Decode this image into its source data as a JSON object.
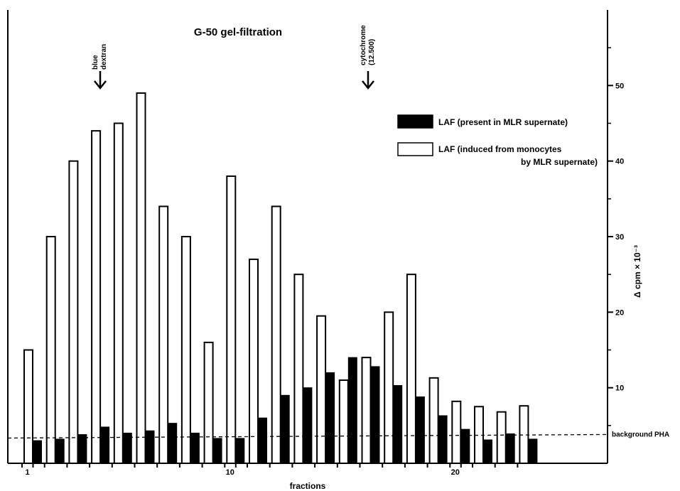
{
  "chart_data": {
    "type": "bar",
    "title": "G-50 gel-filtration",
    "xlabel": "fractions",
    "ylabel": "Δ cpm × 10⁻³",
    "x_ticks": [
      1,
      10,
      20
    ],
    "y_ticks": [
      10,
      20,
      30,
      40,
      50
    ],
    "ylim": [
      0,
      60
    ],
    "fractions": [
      1,
      2,
      3,
      4,
      5,
      6,
      7,
      8,
      9,
      10,
      11,
      12,
      13,
      14,
      15,
      16,
      17,
      18,
      19,
      20,
      21,
      22,
      23
    ],
    "series": [
      {
        "name": "LAF (induced from monocytes by MLR supernate)",
        "legend_lines": [
          "LAF (induced from monocytes",
          "by MLR supernate)"
        ],
        "fill": "#ffffff",
        "values": [
          15,
          30,
          40,
          44,
          45,
          49,
          34,
          30,
          16,
          38,
          27,
          34,
          25,
          19.5,
          11,
          14,
          20,
          25,
          11.3,
          8.2,
          7.5,
          6.8,
          7.6
        ]
      },
      {
        "name": "LAF (present in MLR supernate)",
        "legend_lines": [
          "LAF (present in MLR supernate)"
        ],
        "fill": "#000000",
        "values": [
          3,
          3.2,
          3.8,
          4.8,
          4,
          4.3,
          5.3,
          4,
          3.3,
          3.3,
          6,
          9,
          10,
          12,
          14,
          12.8,
          10.3,
          8.8,
          6.3,
          4.5,
          3.1,
          3.9,
          3.2
        ]
      }
    ],
    "background_line": {
      "label": "background PHA",
      "value": 4
    },
    "annotations": [
      {
        "label_lines": [
          "blue",
          "dextran"
        ],
        "at_fraction": 4
      },
      {
        "label_lines": [
          "cytochrome",
          "(12.500)"
        ],
        "at_fraction": 16
      }
    ],
    "grid": false,
    "legend_position": "right"
  }
}
